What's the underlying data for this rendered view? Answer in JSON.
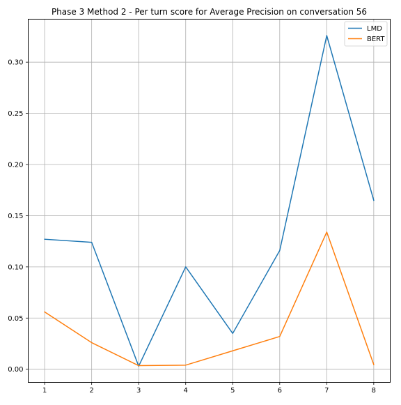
{
  "chart_data": {
    "type": "line",
    "title": "Phase 3 Method 2 - Per turn score for Average Precision on conversation 56",
    "xlabel": "",
    "ylabel": "",
    "x": [
      1,
      2,
      3,
      4,
      5,
      6,
      7,
      8
    ],
    "x_ticks": [
      "1",
      "2",
      "3",
      "4",
      "5",
      "6",
      "7",
      "8"
    ],
    "xlim": [
      0.65,
      8.35
    ],
    "y_ticks": [
      "0.00",
      "0.05",
      "0.10",
      "0.15",
      "0.20",
      "0.25",
      "0.30"
    ],
    "y_tick_values": [
      0.0,
      0.05,
      0.1,
      0.15,
      0.2,
      0.25,
      0.3
    ],
    "ylim": [
      -0.0128,
      0.342
    ],
    "grid": true,
    "legend_position": "top-right",
    "series": [
      {
        "name": "LMD",
        "color": "#1f77b4",
        "values": [
          0.127,
          0.124,
          0.003,
          0.1,
          0.035,
          0.116,
          0.326,
          0.165
        ]
      },
      {
        "name": "BERT",
        "color": "#ff7f0e",
        "values": [
          0.056,
          0.026,
          0.0035,
          0.004,
          0.018,
          0.032,
          0.134,
          0.0045
        ]
      }
    ]
  }
}
